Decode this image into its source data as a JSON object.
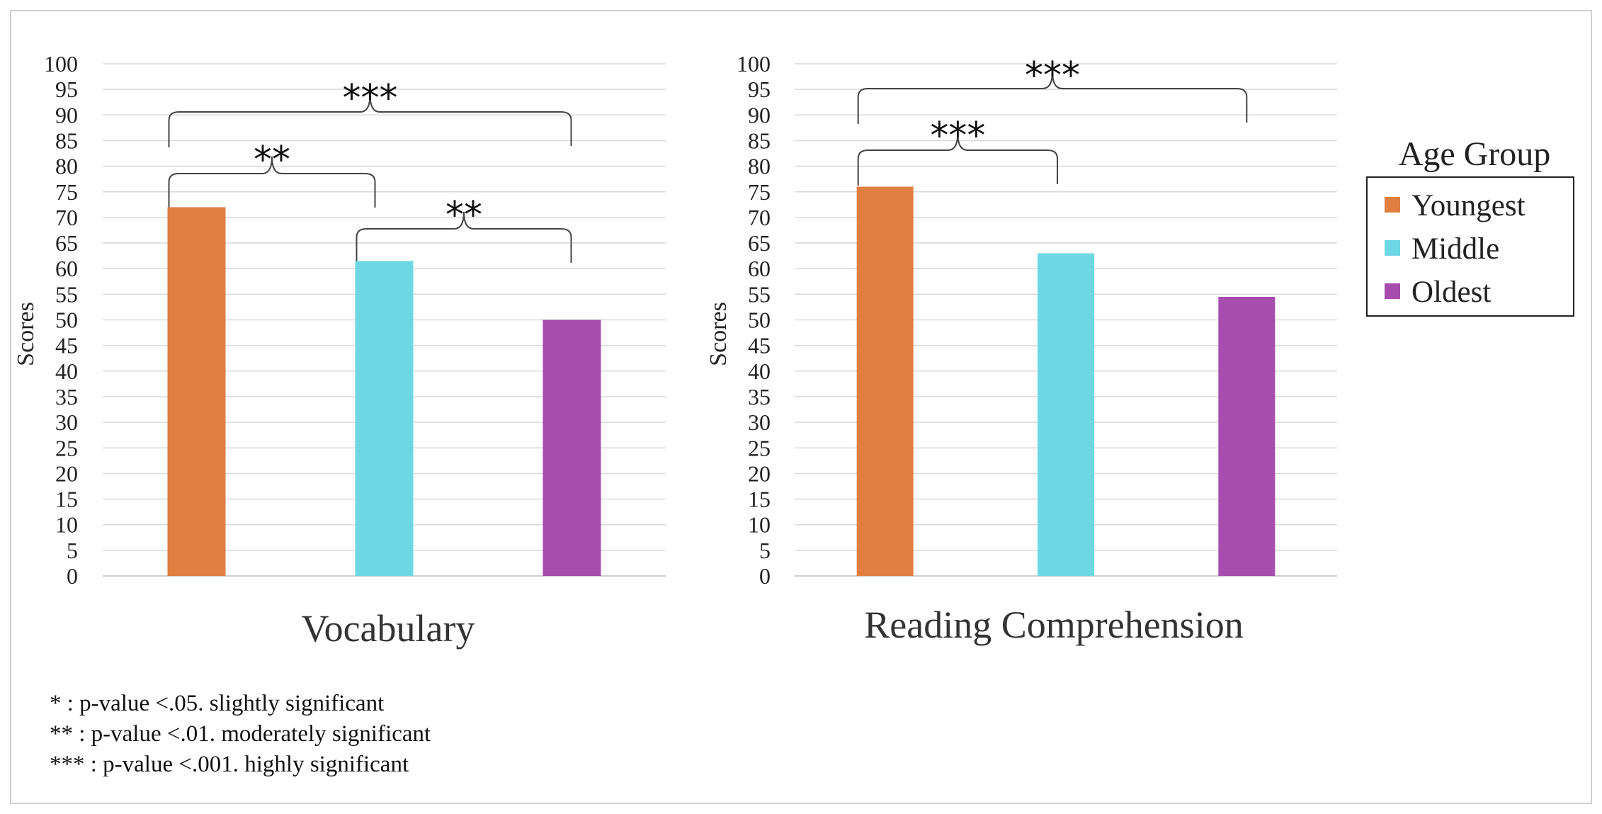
{
  "chart_data": [
    {
      "type": "bar",
      "title": "Vocabulary",
      "xlabel": "",
      "ylabel": "Scores",
      "ylim": [
        0,
        100
      ],
      "yticks": [
        0,
        5,
        10,
        15,
        20,
        25,
        30,
        35,
        40,
        45,
        50,
        55,
        60,
        65,
        70,
        75,
        80,
        85,
        90,
        95,
        100
      ],
      "grid": true,
      "categories": [
        "Youngest",
        "Middle",
        "Oldest"
      ],
      "values": [
        72,
        61.5,
        50
      ],
      "colors": [
        "#e07f40",
        "#6dd8e3",
        "#a64dae"
      ],
      "significance": [
        {
          "from": "Youngest",
          "to": "Middle",
          "label": "**"
        },
        {
          "from": "Middle",
          "to": "Oldest",
          "label": "**"
        },
        {
          "from": "Youngest",
          "to": "Oldest",
          "label": "***"
        }
      ]
    },
    {
      "type": "bar",
      "title": "Reading Comprehension",
      "xlabel": "",
      "ylabel": "Scores",
      "ylim": [
        0,
        100
      ],
      "yticks": [
        0,
        5,
        10,
        15,
        20,
        25,
        30,
        35,
        40,
        45,
        50,
        55,
        60,
        65,
        70,
        75,
        80,
        85,
        90,
        95,
        100
      ],
      "grid": true,
      "categories": [
        "Youngest",
        "Middle",
        "Oldest"
      ],
      "values": [
        76,
        63,
        54.5
      ],
      "colors": [
        "#e07f40",
        "#6dd8e3",
        "#a64dae"
      ],
      "significance": [
        {
          "from": "Youngest",
          "to": "Middle",
          "label": "***"
        },
        {
          "from": "Youngest",
          "to": "Oldest",
          "label": "***"
        }
      ]
    }
  ],
  "legend": {
    "title": "Age Group",
    "placement": "right",
    "items": [
      {
        "label": "Youngest",
        "color": "#e07f40"
      },
      {
        "label": "Middle",
        "color": "#6dd8e3"
      },
      {
        "label": "Oldest",
        "color": "#a64dae"
      }
    ]
  },
  "notes": [
    "* : p-value <.05. slightly significant",
    "** : p-value <.01. moderately significant",
    "*** : p-value <.001. highly significant"
  ]
}
